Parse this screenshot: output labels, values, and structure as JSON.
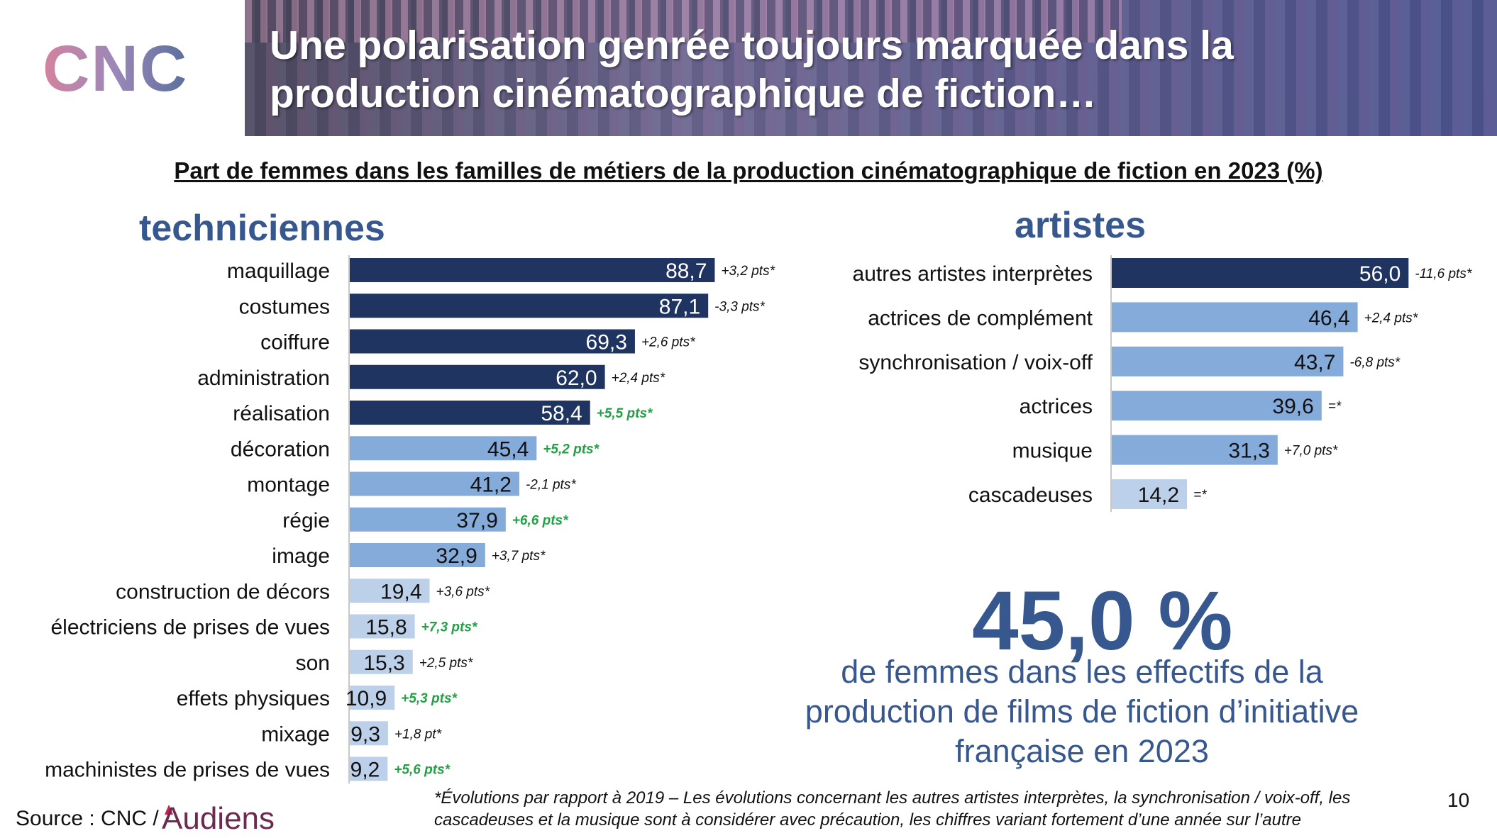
{
  "header": {
    "title": "Une polarisation genrée toujours marquée dans la production cinématographique de fiction…",
    "logo_text": "CNC"
  },
  "chart_data": {
    "type": "bar",
    "title": "Part de femmes dans les familles de métiers de la production cinématographique de fiction en 2023 (%)",
    "groups": [
      {
        "name": "techniciennes",
        "categories": [
          "maquillage",
          "costumes",
          "coiffure",
          "administration",
          "réalisation",
          "décoration",
          "montage",
          "régie",
          "image",
          "construction de décors",
          "électriciens de prises de vues",
          "son",
          "effets physiques",
          "mixage",
          "machinistes de prises de vues"
        ],
        "values": [
          88.7,
          87.1,
          69.3,
          62.0,
          58.4,
          45.4,
          41.2,
          37.9,
          32.9,
          19.4,
          15.8,
          15.3,
          10.9,
          9.3,
          9.2
        ],
        "value_labels": [
          "88,7",
          "87,1",
          "69,3",
          "62,0",
          "58,4",
          "45,4",
          "41,2",
          "37,9",
          "32,9",
          "19,4",
          "15,8",
          "15,3",
          "10,9",
          "9,3",
          "9,2"
        ],
        "changes": [
          "+3,2 pts*",
          "-3,3 pts*",
          "+2,6 pts*",
          "+2,4 pts*",
          "+5,5 pts*",
          "+5,2 pts*",
          "-2,1 pts*",
          "+6,6 pts*",
          "+3,7 pts*",
          "+3,6 pts*",
          "+7,3 pts*",
          "+2,5 pts*",
          "+5,3 pts*",
          "+1,8 pt*",
          "+5,6 pts*"
        ],
        "change_highlight": [
          false,
          false,
          false,
          false,
          true,
          true,
          false,
          true,
          false,
          false,
          true,
          false,
          true,
          false,
          true
        ]
      },
      {
        "name": "artistes",
        "categories": [
          "autres artistes interprètes",
          "actrices de complément",
          "synchronisation / voix-off",
          "actrices",
          "musique",
          "cascadeuses"
        ],
        "values": [
          56.0,
          46.4,
          43.7,
          39.6,
          31.3,
          14.2
        ],
        "value_labels": [
          "56,0",
          "46,4",
          "43,7",
          "39,6",
          "31,3",
          "14,2"
        ],
        "changes": [
          "-11,6 pts*",
          "+2,4 pts*",
          "-6,8 pts*",
          "=*",
          "+7,0 pts*",
          "=*"
        ],
        "change_highlight": [
          false,
          false,
          false,
          false,
          false,
          false
        ]
      }
    ],
    "colors": {
      "high": "#1f3461",
      "mid": "#85abdb",
      "low": "#bdd0ea",
      "highlight_change": "#23a046",
      "section_title": "#37588e"
    },
    "xlim": [
      0,
      100
    ]
  },
  "highlight": {
    "value": "45,0 %",
    "text": "de femmes dans les effectifs de la production de films de fiction d’initiative française en 2023"
  },
  "footer": {
    "footnote": "*Évolutions par rapport à 2019 – Les évolutions concernant les autres artistes interprètes, la synchronisation / voix-off, les cascadeuses et la musique sont à considérer avec précaution, les chiffres variant fortement d’une année sur l’autre",
    "source_label": "Source : CNC /",
    "partner_logo_text": "Audiens",
    "page_number": "10"
  }
}
